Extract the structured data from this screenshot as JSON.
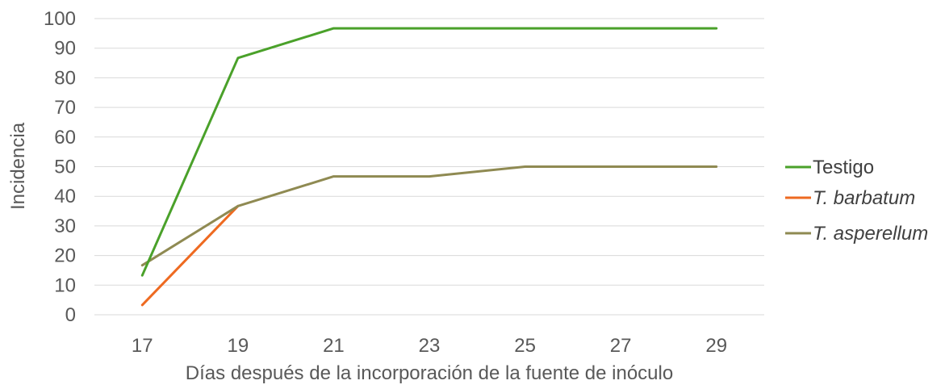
{
  "chart_data": {
    "type": "line",
    "title": "",
    "xlabel": "Días después de la incorporación de la fuente de inóculo",
    "ylabel": "Incidencia",
    "x": [
      17,
      19,
      21,
      23,
      25,
      27,
      29
    ],
    "x_ticks": [
      "17",
      "19",
      "21",
      "23",
      "25",
      "27",
      "29"
    ],
    "ylim": [
      0,
      100
    ],
    "y_ticks": [
      0,
      10,
      20,
      30,
      40,
      50,
      60,
      70,
      80,
      90,
      100
    ],
    "grid": "horizontal",
    "legend_position": "right",
    "series": [
      {
        "name": "Testigo",
        "color": "#4aa12a",
        "italic": false,
        "values": [
          13.3,
          86.7,
          96.7,
          96.7,
          96.7,
          96.7,
          96.7
        ]
      },
      {
        "name": "T. barbatum",
        "color": "#ee6a21",
        "italic": true,
        "values": [
          3.3,
          36.7,
          null,
          null,
          null,
          null,
          null
        ]
      },
      {
        "name": "T. asperellum",
        "color": "#8f8a52",
        "italic": true,
        "values": [
          16.7,
          36.7,
          46.7,
          46.7,
          50,
          50,
          50
        ]
      }
    ]
  }
}
